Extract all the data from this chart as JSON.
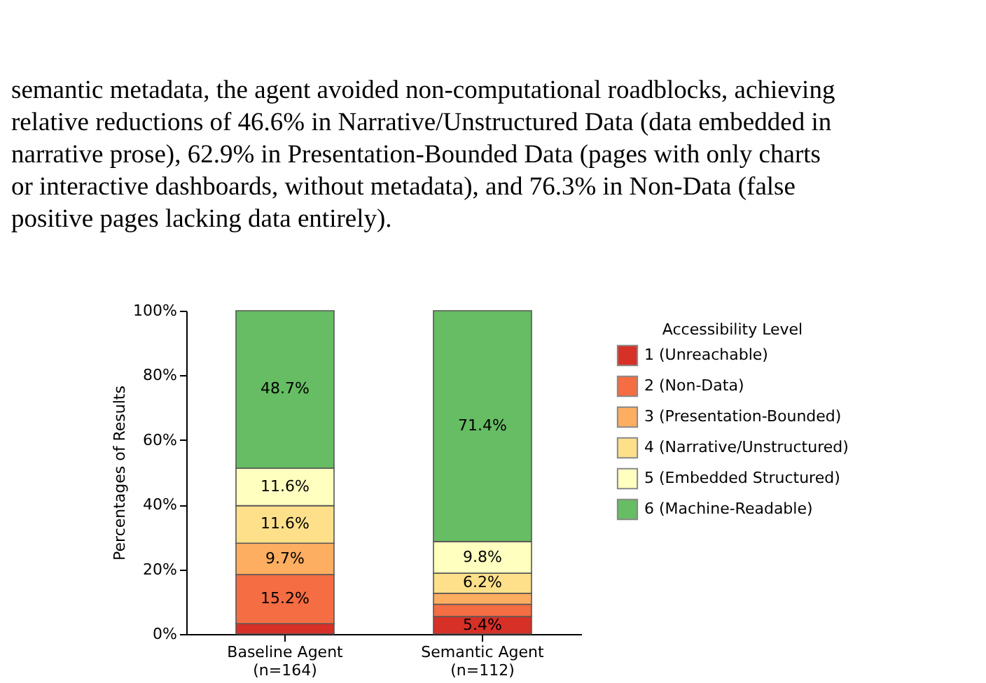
{
  "chart_data": {
    "type": "bar",
    "stacked": true,
    "annotations": [
      "semantic metadata, the agent avoided non-computational roadblocks, achieving",
      "relative reductions of 46.6% in Narrative/Unstructured Data (data embedded in",
      "narrative prose), 62.9% in Presentation-Bounded Data (pages with only charts",
      "or interactive dashboards, without metadata), and 76.3% in Non-Data (false",
      "positive pages lacking data entirely)."
    ],
    "ylabel": "Percentages of Results",
    "legend_title": "Accessibility Level",
    "legend": "right",
    "categories": [
      "Baseline Agent\n(n=164)",
      "Semantic Agent\n(n=112)"
    ],
    "ylim": [
      0,
      100
    ],
    "yticks": [
      {
        "value": 0,
        "label": "0%"
      },
      {
        "value": 20,
        "label": "20%"
      },
      {
        "value": 40,
        "label": "40%"
      },
      {
        "value": 60,
        "label": "60%"
      },
      {
        "value": 80,
        "label": "80%"
      },
      {
        "value": 100,
        "label": "100%"
      }
    ],
    "grid": false,
    "series": [
      {
        "name": "1 (Unreachable)",
        "color": "#d73027",
        "values": [
          3.2,
          5.4
        ],
        "value_labels": [
          null,
          "5.4%"
        ]
      },
      {
        "name": "2 (Non-Data)",
        "color": "#f46d43",
        "values": [
          15.2,
          3.8
        ],
        "value_labels": [
          "15.2%",
          null
        ]
      },
      {
        "name": "3 (Presentation-Bounded)",
        "color": "#fdae61",
        "values": [
          9.7,
          3.4
        ],
        "value_labels": [
          "9.7%",
          null
        ]
      },
      {
        "name": "4 (Narrative/Unstructured)",
        "color": "#fee08b",
        "values": [
          11.6,
          6.2
        ],
        "value_labels": [
          "11.6%",
          "6.2%"
        ]
      },
      {
        "name": "5 (Embedded Structured)",
        "color": "#ffffbf",
        "values": [
          11.6,
          9.8
        ],
        "value_labels": [
          "11.6%",
          "9.8%"
        ]
      },
      {
        "name": "6 (Machine-Readable)",
        "color": "#66bd63",
        "values": [
          48.7,
          71.4
        ],
        "value_labels": [
          "48.7%",
          "71.4%"
        ]
      }
    ]
  }
}
